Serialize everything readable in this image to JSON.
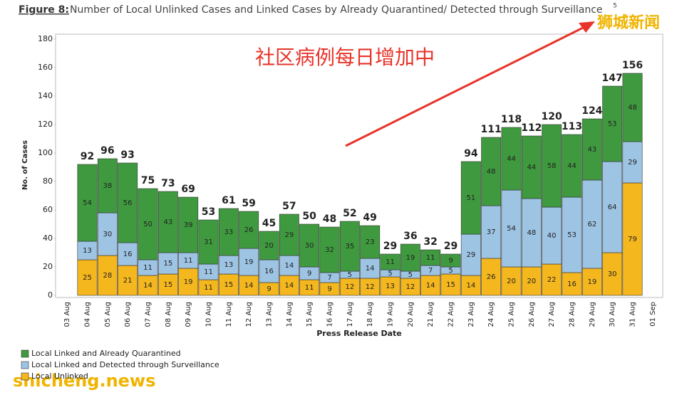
{
  "chart_data": {
    "type": "stacked_bar",
    "figure_label": "Figure 8:",
    "title": "Number of Local Unlinked Cases and Linked Cases by Already Quarantined/ Detected through Surveillance",
    "title_superscript": "5",
    "annotation": "社区病例每日增加中",
    "watermarks": [
      "狮城新闻",
      "shicheng.news"
    ],
    "x_label": "Press Release Date",
    "y_label": "No. of Cases",
    "categories": [
      "03 Aug",
      "04 Aug",
      "05 Aug",
      "06 Aug",
      "07 Aug",
      "08 Aug",
      "09 Aug",
      "10 Aug",
      "11 Aug",
      "12 Aug",
      "13 Aug",
      "14 Aug",
      "15 Aug",
      "16 Aug",
      "17 Aug",
      "18 Aug",
      "19 Aug",
      "20 Aug",
      "21 Aug",
      "22 Aug",
      "23 Aug",
      "24 Aug",
      "25 Aug",
      "26 Aug",
      "27 Aug",
      "28 Aug",
      "29 Aug",
      "30 Aug",
      "31 Aug",
      "01 Sep"
    ],
    "series": [
      {
        "name": "Local Unlinked",
        "color": "#f5b71e",
        "values": [
          null,
          25,
          28,
          21,
          14,
          15,
          19,
          11,
          15,
          14,
          9,
          14,
          11,
          9,
          12,
          12,
          13,
          12,
          14,
          15,
          14,
          26,
          20,
          20,
          22,
          16,
          19,
          30,
          79,
          null
        ]
      },
      {
        "name": "Local Linked and Detected through Surveillance",
        "color": "#9ec4e4",
        "values": [
          null,
          13,
          30,
          16,
          11,
          15,
          11,
          11,
          13,
          19,
          16,
          14,
          9,
          7,
          5,
          14,
          5,
          5,
          7,
          5,
          29,
          37,
          54,
          48,
          40,
          53,
          62,
          64,
          29,
          null
        ]
      },
      {
        "name": "Local Linked and Already Quarantined",
        "color": "#3f9a3f",
        "values": [
          null,
          54,
          38,
          56,
          50,
          43,
          39,
          31,
          33,
          26,
          20,
          29,
          30,
          32,
          35,
          23,
          11,
          19,
          11,
          9,
          51,
          48,
          44,
          44,
          58,
          44,
          43,
          53,
          48,
          null
        ]
      }
    ],
    "totals": [
      null,
      92,
      96,
      93,
      75,
      73,
      69,
      53,
      61,
      59,
      45,
      57,
      50,
      48,
      52,
      49,
      29,
      36,
      32,
      29,
      94,
      111,
      118,
      112,
      120,
      113,
      124,
      147,
      156,
      null
    ],
    "legend_order": [
      2,
      1,
      0
    ],
    "ylim": [
      0,
      180
    ],
    "yticks": [
      0,
      20,
      40,
      60,
      80,
      100,
      120,
      140,
      160,
      180
    ],
    "grid": false
  }
}
